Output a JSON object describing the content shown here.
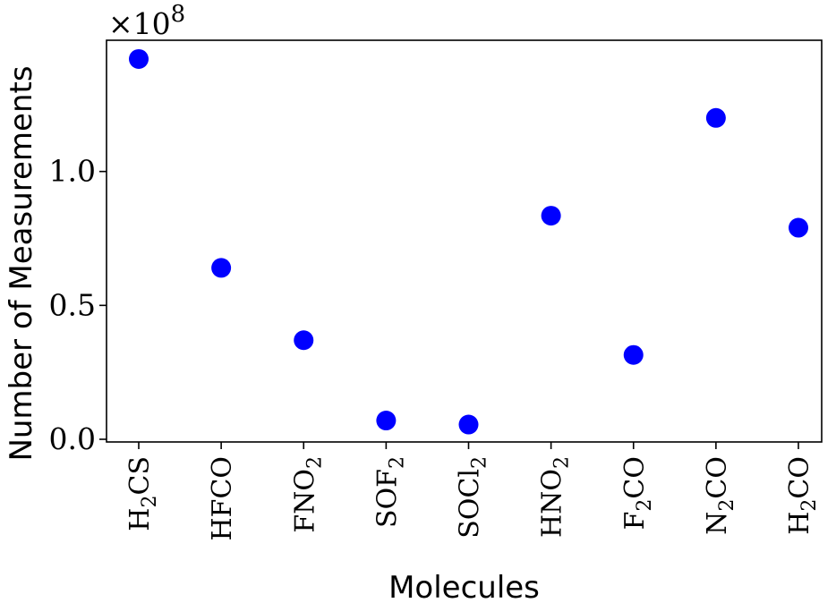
{
  "chart_data": {
    "type": "scatter",
    "xlabel": "Molecules",
    "ylabel": "Number of Measurements",
    "categories": [
      {
        "base": "H",
        "sub": "2",
        "rest": "CS"
      },
      {
        "base": "HFCO",
        "sub": "",
        "rest": ""
      },
      {
        "base": "FNO",
        "sub": "2",
        "rest": ""
      },
      {
        "base": "SOF",
        "sub": "2",
        "rest": ""
      },
      {
        "base": "SOCl",
        "sub": "2",
        "rest": ""
      },
      {
        "base": "HNO",
        "sub": "2",
        "rest": ""
      },
      {
        "base": "F",
        "sub": "2",
        "rest": "CO"
      },
      {
        "base": "N",
        "sub": "2",
        "rest": "CO"
      },
      {
        "base": "H",
        "sub": "2",
        "rest": "CO"
      }
    ],
    "values": [
      142000000,
      64000000,
      37000000,
      7000000,
      5500000,
      83500000,
      31500000,
      120000000,
      79000000
    ],
    "y_multiplier": {
      "prefix": "×10",
      "exponent": "8"
    },
    "yticks": [
      {
        "value": 0,
        "label": "0.0"
      },
      {
        "value": 50000000,
        "label": "0.5"
      },
      {
        "value": 100000000,
        "label": "1.0"
      }
    ],
    "ylim": [
      -1000000,
      149000000
    ],
    "marker_color": "#0000ff",
    "grid": false,
    "legend": "none"
  }
}
